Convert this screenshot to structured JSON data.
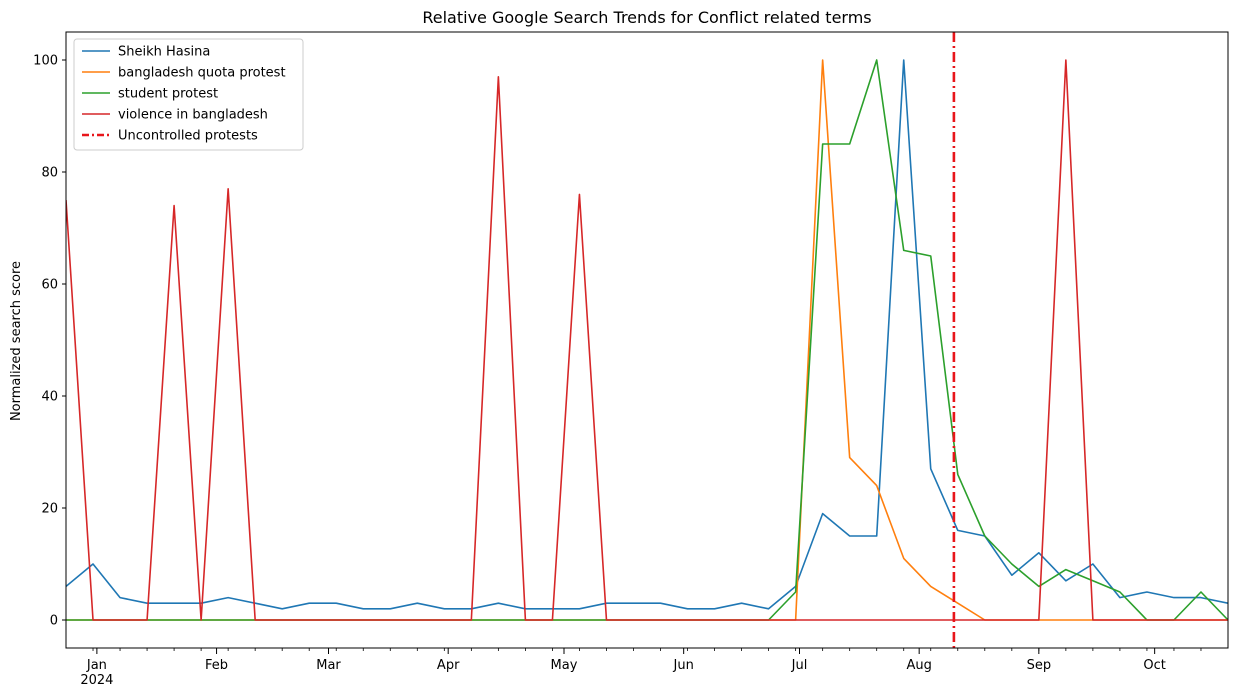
{
  "chart_data": {
    "type": "line",
    "title": "Relative Google Search Trends for Conflict related terms",
    "xlabel": "",
    "ylabel": "Normalized search score",
    "ylim": [
      -5,
      105
    ],
    "xlim": [
      "2023-12-24",
      "2024-10-20"
    ],
    "y_ticks": [
      0,
      20,
      40,
      60,
      80,
      100
    ],
    "x_ticks": [
      {
        "date": "2024-01-01",
        "label": "Jan",
        "sublabel": "2024"
      },
      {
        "date": "2024-02-01",
        "label": "Feb"
      },
      {
        "date": "2024-03-01",
        "label": "Mar"
      },
      {
        "date": "2024-04-01",
        "label": "Apr"
      },
      {
        "date": "2024-05-01",
        "label": "May"
      },
      {
        "date": "2024-06-01",
        "label": "Jun"
      },
      {
        "date": "2024-07-01",
        "label": "Jul"
      },
      {
        "date": "2024-08-01",
        "label": "Aug"
      },
      {
        "date": "2024-09-01",
        "label": "Sep"
      },
      {
        "date": "2024-10-01",
        "label": "Oct"
      }
    ],
    "grid": false,
    "legend_position": "top-left",
    "x": [
      "2023-12-24",
      "2023-12-31",
      "2024-01-07",
      "2024-01-14",
      "2024-01-21",
      "2024-01-28",
      "2024-02-04",
      "2024-02-11",
      "2024-02-18",
      "2024-02-25",
      "2024-03-03",
      "2024-03-10",
      "2024-03-17",
      "2024-03-24",
      "2024-03-31",
      "2024-04-07",
      "2024-04-14",
      "2024-04-21",
      "2024-04-28",
      "2024-05-05",
      "2024-05-12",
      "2024-05-19",
      "2024-05-26",
      "2024-06-02",
      "2024-06-09",
      "2024-06-16",
      "2024-06-23",
      "2024-06-30",
      "2024-07-07",
      "2024-07-14",
      "2024-07-21",
      "2024-07-28",
      "2024-08-04",
      "2024-08-11",
      "2024-08-18",
      "2024-08-25",
      "2024-09-01",
      "2024-09-08",
      "2024-09-15",
      "2024-09-22",
      "2024-09-29",
      "2024-10-06",
      "2024-10-13",
      "2024-10-20"
    ],
    "series": [
      {
        "name": "Sheikh Hasina",
        "color": "#1f77b4",
        "values": [
          6,
          10,
          4,
          3,
          3,
          3,
          4,
          3,
          2,
          3,
          3,
          2,
          2,
          3,
          2,
          2,
          3,
          2,
          2,
          2,
          3,
          3,
          3,
          2,
          2,
          3,
          2,
          6,
          19,
          15,
          15,
          100,
          27,
          16,
          15,
          8,
          12,
          7,
          10,
          4,
          5,
          4,
          4,
          3
        ]
      },
      {
        "name": "bangladesh quota protest",
        "color": "#ff7f0e",
        "values": [
          0,
          0,
          0,
          0,
          0,
          0,
          0,
          0,
          0,
          0,
          0,
          0,
          0,
          0,
          0,
          0,
          0,
          0,
          0,
          0,
          0,
          0,
          0,
          0,
          0,
          0,
          0,
          0,
          100,
          29,
          24,
          11,
          6,
          3,
          0,
          0,
          0,
          0,
          0,
          0,
          0,
          0,
          0,
          0
        ]
      },
      {
        "name": "student protest",
        "color": "#2ca02c",
        "values": [
          0,
          0,
          0,
          0,
          0,
          0,
          0,
          0,
          0,
          0,
          0,
          0,
          0,
          0,
          0,
          0,
          0,
          0,
          0,
          0,
          0,
          0,
          0,
          0,
          0,
          0,
          0,
          5,
          85,
          85,
          100,
          66,
          65,
          26,
          15,
          10,
          6,
          9,
          7,
          5,
          0,
          0,
          5,
          0
        ]
      },
      {
        "name": "violence in bangladesh",
        "color": "#d62728",
        "values": [
          75,
          0,
          0,
          0,
          74,
          0,
          77,
          0,
          0,
          0,
          0,
          0,
          0,
          0,
          0,
          0,
          97,
          0,
          0,
          76,
          0,
          0,
          0,
          0,
          0,
          0,
          0,
          0,
          0,
          0,
          0,
          0,
          0,
          0,
          0,
          0,
          0,
          100,
          0,
          0,
          0,
          0,
          0,
          0
        ]
      }
    ],
    "annotations": [
      {
        "type": "vline",
        "x": "2024-08-10",
        "label": "Uncontrolled protests",
        "color": "#e8161b",
        "style": "dashdot"
      }
    ]
  }
}
